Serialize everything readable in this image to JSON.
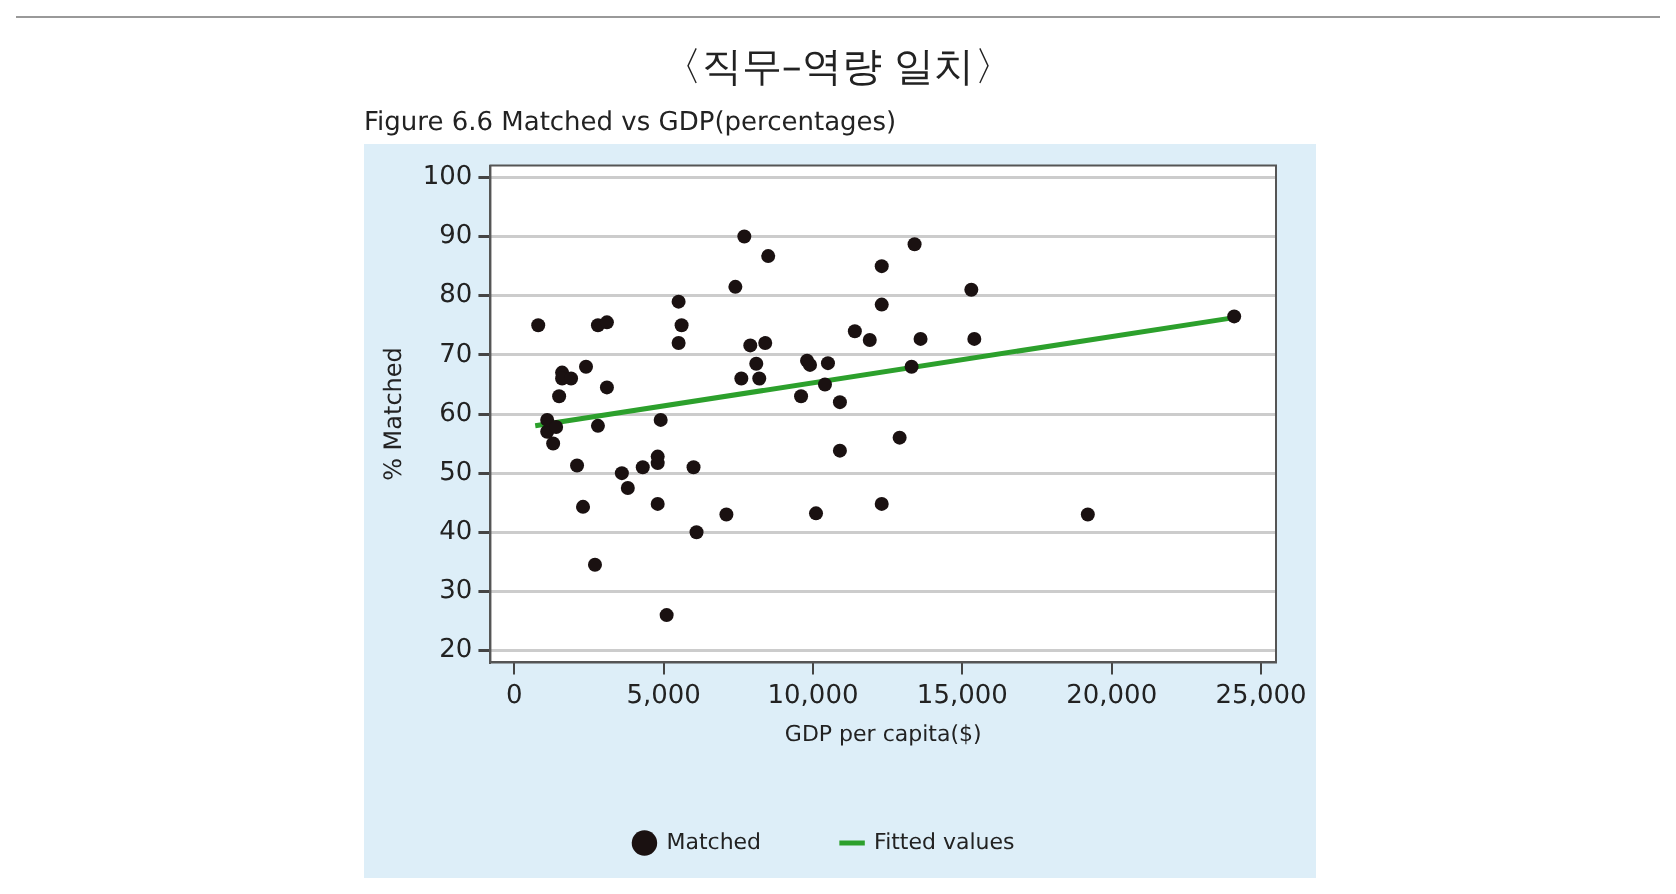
{
  "chart_data": {
    "type": "scatter",
    "title": "〈직무–역량 일치〉",
    "subtitle": "Figure 6.6 Matched vs GDP(percentages)",
    "xlabel": "GDP per capita($)",
    "ylabel": "% Matched",
    "xlim": [
      -800,
      25500
    ],
    "xticks": [
      {
        "value": 0,
        "label": "0"
      },
      {
        "value": 5000,
        "label": "5,000"
      },
      {
        "value": 10000,
        "label": "10,000"
      },
      {
        "value": 15000,
        "label": "15,000"
      },
      {
        "value": 20000,
        "label": "20,000"
      },
      {
        "value": 25000,
        "label": "25,000"
      }
    ],
    "ylim": [
      18,
      102
    ],
    "yticks": [
      20,
      30,
      40,
      50,
      60,
      70,
      80,
      90,
      100
    ],
    "grid": "y",
    "legend": "bottom",
    "marker": "circle",
    "series": [
      {
        "name": "Matched",
        "type": "scatter",
        "color": "#1a1111",
        "x": [
          800,
          1100,
          1100,
          1300,
          1400,
          1500,
          1600,
          1600,
          1900,
          2100,
          2300,
          2400,
          2700,
          2800,
          2800,
          3100,
          3100,
          3600,
          3800,
          4300,
          4800,
          4800,
          4800,
          4900,
          5100,
          5500,
          5500,
          5600,
          6000,
          6100,
          7100,
          7400,
          7600,
          7700,
          7900,
          8100,
          8200,
          8400,
          8500,
          9600,
          9800,
          9900,
          10100,
          10400,
          10500,
          10900,
          10900,
          11400,
          11900,
          12300,
          12300,
          12300,
          12900,
          13300,
          13400,
          13600,
          15300,
          15400,
          19200,
          24100
        ],
        "values": [
          75,
          57,
          59,
          55,
          57.8,
          63,
          67,
          66,
          66,
          51.3,
          44.3,
          68,
          34.5,
          58,
          75,
          75.5,
          64.5,
          50,
          47.5,
          51,
          51.7,
          52.8,
          44.8,
          59,
          26,
          79,
          72,
          75,
          51,
          40,
          43,
          81.5,
          66,
          90,
          71.6,
          68.5,
          66,
          72,
          86.7,
          63,
          69,
          68.3,
          43.2,
          65,
          68.6,
          62,
          53.8,
          74,
          72.5,
          78.5,
          85,
          44.8,
          56,
          68,
          88.7,
          72.7,
          81,
          72.7,
          43,
          76.5
        ]
      },
      {
        "name": "Fitted values",
        "type": "line",
        "color": "#2ca02c",
        "marker": "none",
        "line_style": "solid",
        "x": [
          700,
          24100
        ],
        "values": [
          58,
          76.3
        ]
      }
    ]
  }
}
